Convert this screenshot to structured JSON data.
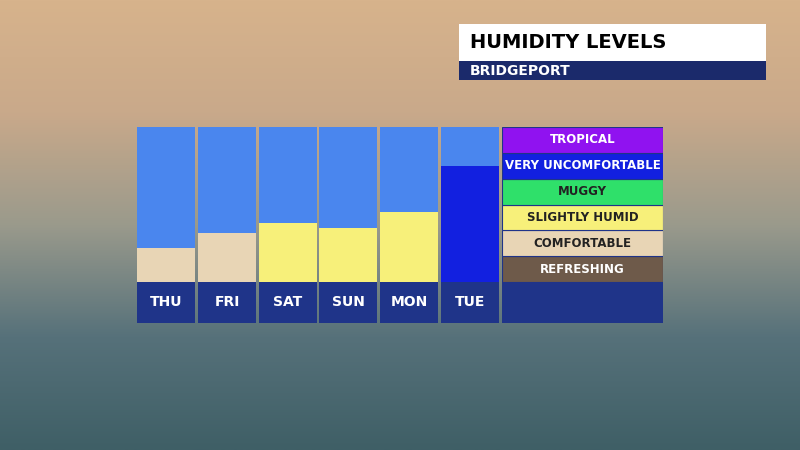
{
  "chart_data": {
    "type": "bar",
    "title": "HUMIDITY LEVELS",
    "subtitle": "BRIDGEPORT",
    "categories": [
      "THU",
      "FRI",
      "SAT",
      "SUN",
      "MON",
      "TUE"
    ],
    "values": [
      1.3,
      1.9,
      2.3,
      2.1,
      2.7,
      4.5
    ],
    "colors": [
      "#e8d5b5",
      "#e8d5b5",
      "#f7f07a",
      "#f7f07a",
      "#f7f07a",
      "#1220e0"
    ],
    "ylim": [
      0,
      6
    ],
    "tick_labels": false,
    "levels": [
      {
        "name": "REFRESHING",
        "color": "#6e5a4a"
      },
      {
        "name": "COMFORTABLE",
        "color": "#e8d5b5"
      },
      {
        "name": "SLIGHTLY HUMID",
        "color": "#f7f07a"
      },
      {
        "name": "MUGGY",
        "color": "#2fe06a"
      },
      {
        "name": "VERY UNCOMFORTABLE",
        "color": "#1220e0"
      },
      {
        "name": "TROPICAL",
        "color": "#9012f0"
      }
    ]
  }
}
